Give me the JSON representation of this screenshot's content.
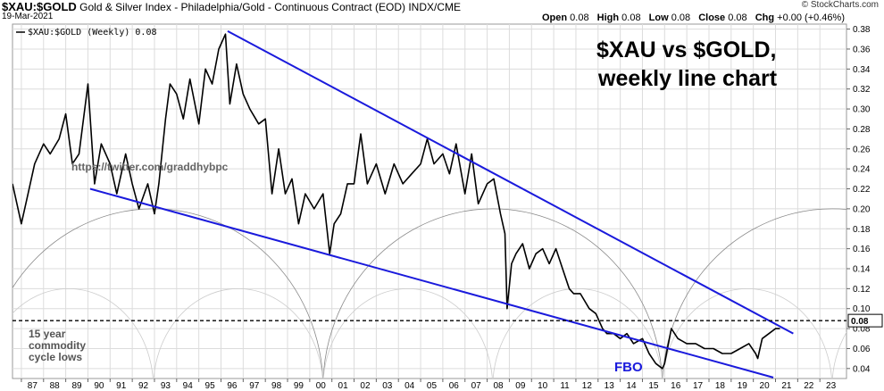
{
  "header": {
    "symbol": "$XAU:$GOLD",
    "description": "Gold & Silver Index - Philadelphia/Gold - Continuous Contract (EOD)",
    "source": "INDX/CME",
    "date": "19-Mar-2021",
    "credit": "© StockCharts.com",
    "ohlc": [
      {
        "label": "Open",
        "value": "0.08"
      },
      {
        "label": "High",
        "value": "0.08"
      },
      {
        "label": "Low",
        "value": "0.08"
      },
      {
        "label": "Close",
        "value": "0.08"
      },
      {
        "label": "Chg",
        "value": "+0.00 (+0.46%)"
      }
    ]
  },
  "chart_data": {
    "type": "line",
    "title": "$XAU vs $GOLD,",
    "subtitle": "weekly line chart",
    "legend": "$XAU:$GOLD (Weekly) 0.08",
    "last_value_label": "0.08",
    "xlim": [
      1986.6,
      2024.2
    ],
    "ylim": [
      0.03,
      0.385
    ],
    "x_tick_labels": [
      "87",
      "88",
      "89",
      "90",
      "91",
      "92",
      "93",
      "94",
      "95",
      "96",
      "97",
      "98",
      "99",
      "00",
      "01",
      "02",
      "03",
      "04",
      "05",
      "06",
      "07",
      "08",
      "09",
      "10",
      "11",
      "12",
      "13",
      "14",
      "15",
      "16",
      "17",
      "18",
      "19",
      "20",
      "21",
      "22",
      "23"
    ],
    "y_ticks": [
      0.04,
      0.06,
      0.08,
      0.1,
      0.12,
      0.14,
      0.16,
      0.18,
      0.2,
      0.22,
      0.24,
      0.26,
      0.28,
      0.3,
      0.32,
      0.34,
      0.36,
      0.38
    ],
    "series": [
      {
        "x": [
          1986.6,
          1987.0,
          1987.3,
          1987.6,
          1988.0,
          1988.3,
          1988.7,
          1989.0,
          1989.3,
          1989.6,
          1990.0,
          1990.3,
          1990.6,
          1991.0,
          1991.3,
          1991.7,
          1992.0,
          1992.3,
          1992.7,
          1993.0,
          1993.2,
          1993.5,
          1993.7,
          1994.0,
          1994.3,
          1994.6,
          1995.0,
          1995.3,
          1995.6,
          1995.9,
          1996.2,
          1996.4,
          1996.7,
          1997.0,
          1997.3,
          1997.7,
          1998.0,
          1998.3,
          1998.6,
          1998.9,
          1999.2,
          1999.5,
          1999.8,
          2000.2,
          2000.6,
          2000.9,
          2001.1,
          2001.4,
          2001.7,
          2002.0,
          2002.3,
          2002.6,
          2003.0,
          2003.4,
          2003.8,
          2004.2,
          2004.6,
          2005.0,
          2005.3,
          2005.6,
          2006.0,
          2006.3,
          2006.6,
          2007.0,
          2007.3,
          2007.6,
          2008.0,
          2008.3,
          2008.6,
          2008.8,
          2008.9,
          2009.1,
          2009.3,
          2009.6,
          2009.9,
          2010.2,
          2010.5,
          2010.8,
          2011.1,
          2011.4,
          2011.7,
          2011.9,
          2012.2,
          2012.6,
          2012.9,
          2013.2,
          2013.4,
          2013.7,
          2014.0,
          2014.3,
          2014.6,
          2015.0,
          2015.3,
          2015.6,
          2015.9,
          2016.0,
          2016.3,
          2016.6,
          2017.0,
          2017.4,
          2017.8,
          2018.2,
          2018.6,
          2019.0,
          2019.4,
          2019.8,
          2020.1,
          2020.2,
          2020.4,
          2020.7,
          2021.0,
          2021.2
        ],
        "values": [
          0.225,
          0.185,
          0.215,
          0.245,
          0.265,
          0.255,
          0.27,
          0.295,
          0.245,
          0.255,
          0.325,
          0.225,
          0.265,
          0.245,
          0.215,
          0.255,
          0.225,
          0.2,
          0.225,
          0.195,
          0.225,
          0.29,
          0.325,
          0.315,
          0.29,
          0.33,
          0.285,
          0.34,
          0.325,
          0.36,
          0.375,
          0.305,
          0.345,
          0.315,
          0.3,
          0.285,
          0.29,
          0.215,
          0.26,
          0.215,
          0.23,
          0.185,
          0.215,
          0.2,
          0.215,
          0.155,
          0.185,
          0.195,
          0.225,
          0.225,
          0.275,
          0.225,
          0.245,
          0.215,
          0.245,
          0.225,
          0.235,
          0.245,
          0.27,
          0.245,
          0.255,
          0.235,
          0.265,
          0.215,
          0.255,
          0.205,
          0.225,
          0.23,
          0.195,
          0.175,
          0.1,
          0.145,
          0.155,
          0.165,
          0.14,
          0.155,
          0.16,
          0.145,
          0.16,
          0.14,
          0.12,
          0.115,
          0.115,
          0.1,
          0.095,
          0.08,
          0.075,
          0.075,
          0.07,
          0.075,
          0.065,
          0.07,
          0.055,
          0.045,
          0.04,
          0.045,
          0.08,
          0.07,
          0.065,
          0.065,
          0.06,
          0.06,
          0.055,
          0.055,
          0.06,
          0.065,
          0.055,
          0.05,
          0.07,
          0.075,
          0.08,
          0.08
        ]
      }
    ],
    "annotations": {
      "url": "https://twitter.com/graddhybpc",
      "cycle_note": [
        "15 year",
        "commodity",
        "cycle lows"
      ],
      "fbo": "FBO"
    },
    "trendlines": [
      {
        "name": "upper",
        "from": [
          1996.3,
          0.378
        ],
        "to": [
          2021.8,
          0.075
        ]
      },
      {
        "name": "lower",
        "from": [
          1990.1,
          0.22
        ],
        "to": [
          2020.9,
          0.031
        ]
      }
    ],
    "reference_line": {
      "value": 0.088,
      "style": "dashed"
    },
    "cycle_arcs": {
      "lows": [
        1978.6,
        1985.3,
        2000.6,
        2015.9,
        2031.2
      ],
      "peak": 0.2
    },
    "colors": {
      "price": "#000000",
      "trendline": "#1a1adc",
      "arcs": "#888888",
      "arcs_light": "#cccccc",
      "grid": "#dcdcdc"
    }
  }
}
